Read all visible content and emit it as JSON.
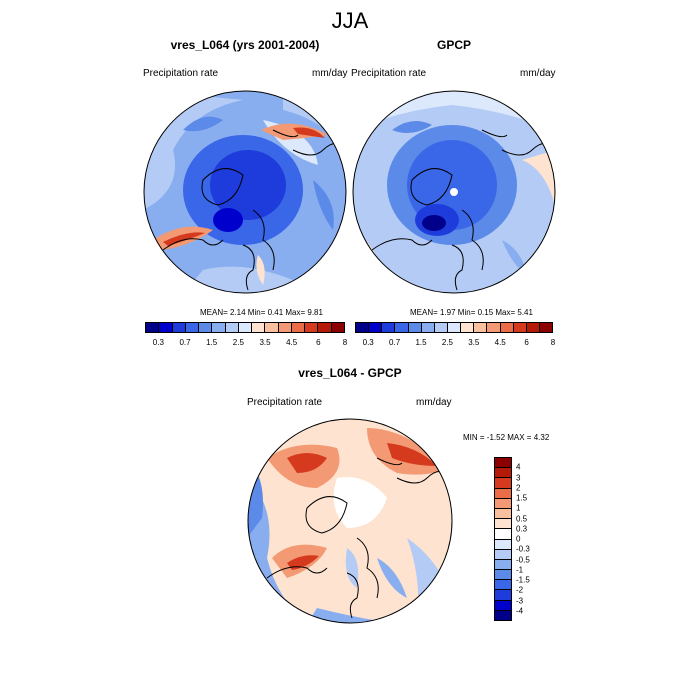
{
  "main_title": "JJA",
  "panels": [
    {
      "title": "vres_L064 (yrs 2001-2004)",
      "left_label": "Precipitation rate",
      "right_label": "mm/day",
      "stats": "MEAN=   2.14  Min=   0.41  Max=   9.81"
    },
    {
      "title": "GPCP",
      "left_label": "Precipitation rate",
      "right_label": "mm/day",
      "stats": "MEAN=   1.97  Min=   0.15  Max=   5.41"
    },
    {
      "title": "vres_L064 - GPCP",
      "left_label": "Precipitation rate",
      "right_label": "mm/day",
      "stats": "MIN =  -1.52 MAX =   4.32"
    }
  ],
  "colorbar_abs": {
    "colors": [
      "#00008b",
      "#0000cd",
      "#1e3cdc",
      "#3a66e8",
      "#5b8ae8",
      "#88aef0",
      "#b4ccf5",
      "#dce8fb",
      "#fde3d0",
      "#f9bf9e",
      "#f39a74",
      "#ea6d48",
      "#d63a1e",
      "#b51a08",
      "#8b0000"
    ],
    "labels": [
      "0.3",
      "0.7",
      "1.5",
      "2.5",
      "3.5",
      "4.5",
      "6",
      "8"
    ]
  },
  "colorbar_diff": {
    "colors": [
      "#8b0000",
      "#b51a08",
      "#d63a1e",
      "#ea6d48",
      "#f39a74",
      "#f9bf9e",
      "#fde3d0",
      "#ffffff",
      "#dce8fb",
      "#b4ccf5",
      "#88aef0",
      "#5b8ae8",
      "#3a66e8",
      "#1e3cdc",
      "#0000cd",
      "#00008b"
    ],
    "labels": [
      "4",
      "3",
      "2",
      "1.5",
      "1",
      "0.5",
      "0.3",
      "0",
      "-0.3",
      "-0.5",
      "-1",
      "-1.5",
      "-2",
      "-3",
      "-4"
    ]
  }
}
